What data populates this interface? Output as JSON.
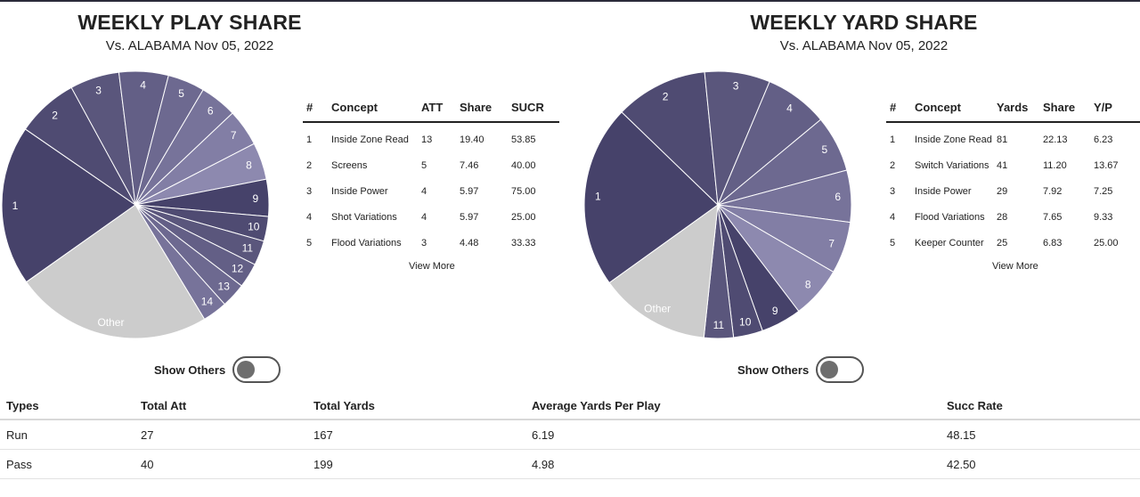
{
  "colors": {
    "dark": "#46426a",
    "other": "#cccccc",
    "slice_stroke": "#ffffff"
  },
  "play_share": {
    "title": "WEEKLY PLAY SHARE",
    "subtitle": "Vs. ALABAMA Nov 05, 2022",
    "table_headers": [
      "#",
      "Concept",
      "ATT",
      "Share",
      "SUCR"
    ],
    "rows": [
      [
        "1",
        "Inside Zone Read",
        "13",
        "19.40",
        "53.85"
      ],
      [
        "2",
        "Screens",
        "5",
        "7.46",
        "40.00"
      ],
      [
        "3",
        "Inside Power",
        "4",
        "5.97",
        "75.00"
      ],
      [
        "4",
        "Shot Variations",
        "4",
        "5.97",
        "25.00"
      ],
      [
        "5",
        "Flood Variations",
        "3",
        "4.48",
        "33.33"
      ]
    ],
    "view_more": "View More",
    "toggle_label": "Show Others"
  },
  "yard_share": {
    "title": "WEEKLY YARD SHARE",
    "subtitle": "Vs. ALABAMA Nov 05, 2022",
    "table_headers": [
      "#",
      "Concept",
      "Yards",
      "Share",
      "Y/P"
    ],
    "rows": [
      [
        "1",
        "Inside Zone Read",
        "81",
        "22.13",
        "6.23"
      ],
      [
        "2",
        "Switch Variations",
        "41",
        "11.20",
        "13.67"
      ],
      [
        "3",
        "Inside Power",
        "29",
        "7.92",
        "7.25"
      ],
      [
        "4",
        "Flood Variations",
        "28",
        "7.65",
        "9.33"
      ],
      [
        "5",
        "Keeper Counter",
        "25",
        "6.83",
        "25.00"
      ]
    ],
    "view_more": "View More",
    "toggle_label": "Show Others"
  },
  "summary": {
    "headers": [
      "Types",
      "Total Att",
      "Total Yards",
      "Average Yards Per Play",
      "Succ Rate"
    ],
    "rows": [
      [
        "Run",
        "27",
        "167",
        "6.19",
        "48.15"
      ],
      [
        "Pass",
        "40",
        "199",
        "4.98",
        "42.50"
      ]
    ]
  },
  "chart_data": [
    {
      "type": "pie",
      "title": "WEEKLY PLAY SHARE",
      "labels": [
        "1",
        "2",
        "3",
        "4",
        "5",
        "6",
        "7",
        "8",
        "9",
        "10",
        "11",
        "12",
        "13",
        "14",
        "Other"
      ],
      "values": [
        19.4,
        7.46,
        5.97,
        5.97,
        4.48,
        4.48,
        4.48,
        4.48,
        4.48,
        2.99,
        2.99,
        2.99,
        2.99,
        2.99,
        23.85
      ],
      "slice_colors": [
        "#46426a",
        "#4f4b72",
        "#5a567c",
        "#635f86",
        "#6d6990",
        "#77739a",
        "#827ea5",
        "#8d89af",
        "#46426a",
        "#4f4b72",
        "#5a567c",
        "#635f86",
        "#6d6990",
        "#77739a",
        "#cccccc"
      ]
    },
    {
      "type": "pie",
      "title": "WEEKLY YARD SHARE",
      "labels": [
        "1",
        "2",
        "3",
        "4",
        "5",
        "6",
        "7",
        "8",
        "9",
        "10",
        "11",
        "Other"
      ],
      "values": [
        22.13,
        11.2,
        7.92,
        7.65,
        6.83,
        6.28,
        6.28,
        6.28,
        4.92,
        3.55,
        3.55,
        13.41
      ],
      "slice_colors": [
        "#46426a",
        "#4f4b72",
        "#5a567c",
        "#635f86",
        "#6d6990",
        "#77739a",
        "#827ea5",
        "#8d89af",
        "#46426a",
        "#4f4b72",
        "#5a567c",
        "#cccccc"
      ]
    }
  ]
}
